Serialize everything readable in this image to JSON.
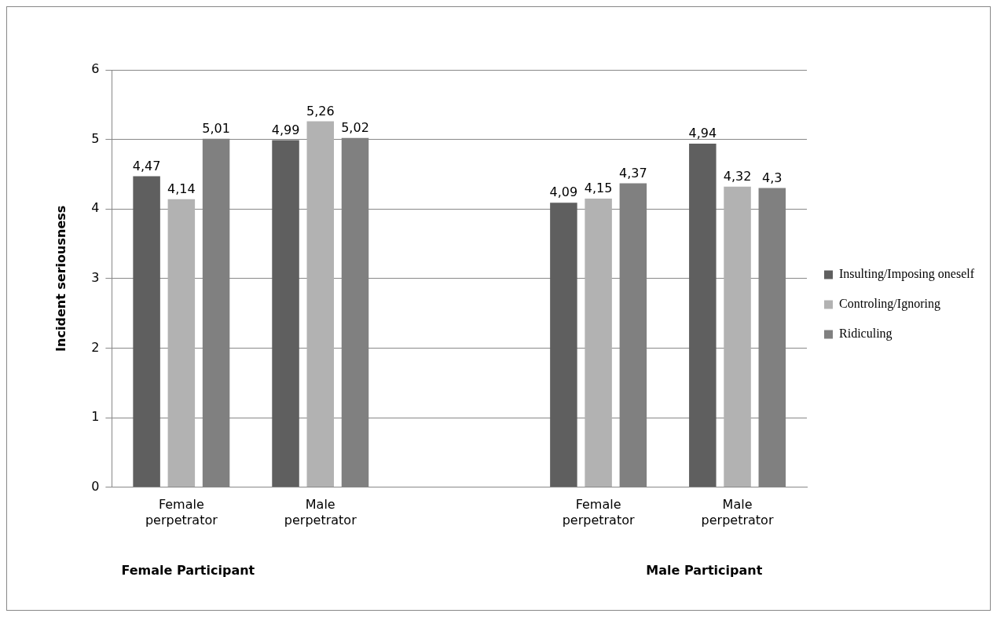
{
  "chart_data": {
    "type": "bar",
    "ylabel": "Incident seriousness",
    "categories": [
      "Female perpetrator",
      "Male perpetrator",
      null,
      "Female perpetrator",
      "Male perpetrator"
    ],
    "series": [
      {
        "name": "Insulting/Imposing oneself",
        "color": "#5f5f5f",
        "values": [
          4.47,
          4.99,
          null,
          4.09,
          4.94
        ],
        "value_labels": [
          "4,47",
          "4,99",
          null,
          "4,09",
          "4,94"
        ]
      },
      {
        "name": "Controling/Ignoring",
        "color": "#b2b2b2",
        "values": [
          4.14,
          5.26,
          null,
          4.15,
          4.32
        ],
        "value_labels": [
          "4,14",
          "5,26",
          null,
          "4,15",
          "4,32"
        ]
      },
      {
        "name": "Ridiculing",
        "color": "#808080",
        "values": [
          5.01,
          5.02,
          null,
          4.37,
          4.3
        ],
        "value_labels": [
          "5,01",
          "5,02",
          null,
          "4,37",
          "4,3"
        ]
      }
    ],
    "ylim": [
      0,
      6
    ],
    "yticks": [
      0,
      1,
      2,
      3,
      4,
      5,
      6
    ],
    "grid": "y",
    "legend": "right",
    "annotations": [
      "Female Participant",
      "Male Participant"
    ]
  }
}
